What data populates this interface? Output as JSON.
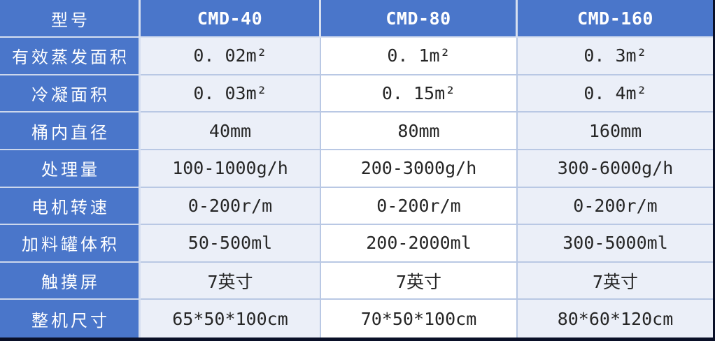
{
  "table": {
    "header": {
      "model_label": "型号",
      "models": [
        "CMD-40",
        "CMD-80",
        "CMD-160"
      ]
    },
    "rows": [
      {
        "label": "有效蒸发面积",
        "values": [
          "0. 02m²",
          "0. 1m²",
          "0. 3m²"
        ]
      },
      {
        "label": "冷凝面积",
        "values": [
          "0. 03m²",
          "0. 15m²",
          "0. 4m²"
        ]
      },
      {
        "label": "桶内直径",
        "values": [
          "40mm",
          "80mm",
          "160mm"
        ]
      },
      {
        "label": "处理量",
        "values": [
          "100-1000g/h",
          "200-3000g/h",
          "300-6000g/h"
        ]
      },
      {
        "label": "电机转速",
        "values": [
          "0-200r/m",
          "0-200r/m",
          "0-200r/m"
        ]
      },
      {
        "label": "加料罐体积",
        "values": [
          "50-500ml",
          "200-2000ml",
          "300-5000ml"
        ]
      },
      {
        "label": "触摸屏",
        "values": [
          "7英寸",
          "7英寸",
          "7英寸"
        ]
      },
      {
        "label": "整机尺寸",
        "values": [
          "65*50*100cm",
          "70*50*100cm",
          "80*60*120cm"
        ]
      }
    ]
  },
  "colors": {
    "header_blue": "#4a76ca",
    "cell_light": "#ebeff8",
    "cell_white": "#ffffff",
    "border_light": "#b9c8e4",
    "border_pale": "#d6dff0",
    "frame_dark": "#0a1028",
    "data_text": "#262626",
    "label_text": "#ffffff"
  }
}
